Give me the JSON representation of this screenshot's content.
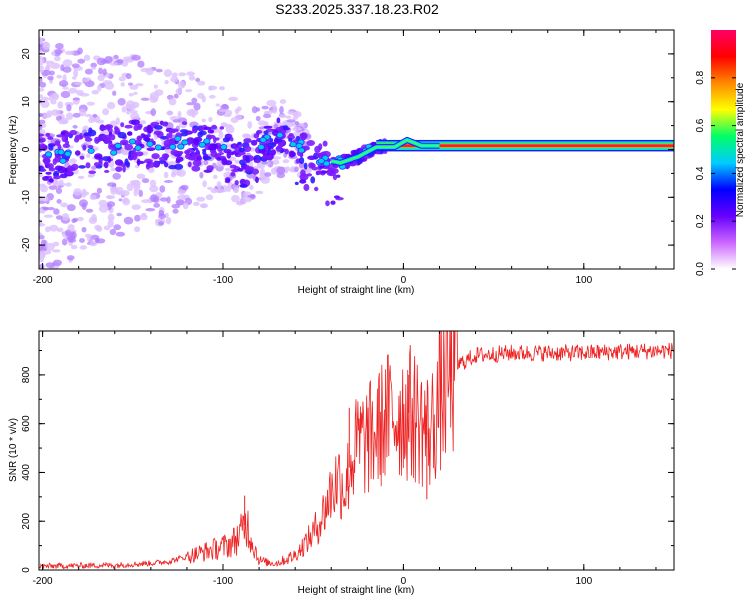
{
  "title": "S233.2025.337.18.23.R02",
  "chart_data": [
    {
      "type": "heatmap",
      "xlabel": "Height of straight line (km)",
      "ylabel": "Frequency (Hz)",
      "xlim": [
        -202,
        150
      ],
      "ylim": [
        -25,
        25
      ],
      "x_ticks": [
        -200,
        -100,
        0,
        100
      ],
      "x_tick_labels": [
        "-200",
        "-100",
        "0",
        "100"
      ],
      "y_ticks": [
        -20,
        -10,
        0,
        10,
        20
      ],
      "y_tick_labels": [
        "-20",
        "-10",
        "0",
        "10",
        "20"
      ],
      "colorbar": {
        "label": "Normalized spectral amplitude",
        "range": [
          0,
          1
        ],
        "ticks": [
          0.0,
          0.2,
          0.4,
          0.6,
          0.8
        ],
        "tick_labels": [
          "0.0",
          "0.2",
          "0.4",
          "0.6",
          "0.8"
        ],
        "colors": [
          "#ffffff",
          "#cc66ff",
          "#6600ff",
          "#0000ff",
          "#00ccff",
          "#00ff66",
          "#ffff00",
          "#ff8800",
          "#ff0000",
          "#ff0066"
        ]
      },
      "ridge": [
        {
          "x": -190,
          "y": -1.5
        },
        {
          "x": -170,
          "y": 0
        },
        {
          "x": -150,
          "y": 1
        },
        {
          "x": -130,
          "y": 1
        },
        {
          "x": -115,
          "y": 2
        },
        {
          "x": -100,
          "y": 1
        },
        {
          "x": -90,
          "y": -2
        },
        {
          "x": -70,
          "y": 3
        },
        {
          "x": -55,
          "y": 0
        },
        {
          "x": -45,
          "y": -2
        },
        {
          "x": -35,
          "y": -2.8
        },
        {
          "x": -25,
          "y": -1.5
        },
        {
          "x": -15,
          "y": 0.5
        },
        {
          "x": -5,
          "y": 0.5
        },
        {
          "x": 2,
          "y": 2
        },
        {
          "x": 10,
          "y": 0.8
        },
        {
          "x": 20,
          "y": 0.8
        },
        {
          "x": 150,
          "y": 0.8
        }
      ]
    },
    {
      "type": "line",
      "xlabel": "Height of straight line (km)",
      "ylabel": "SNR (10 * v/v)",
      "xlim": [
        -202,
        150
      ],
      "ylim": [
        0,
        980
      ],
      "x_ticks": [
        -200,
        -100,
        0,
        100
      ],
      "x_tick_labels": [
        "-200",
        "-100",
        "0",
        "100"
      ],
      "y_ticks": [
        0,
        200,
        400,
        600,
        800
      ],
      "y_tick_labels": [
        "0",
        "200",
        "400",
        "600",
        "800"
      ],
      "color": "#ee2222",
      "series": [
        {
          "name": "SNR",
          "x": [
            -202,
            -180,
            -160,
            -140,
            -130,
            -120,
            -110,
            -100,
            -95,
            -90,
            -87,
            -84,
            -80,
            -75,
            -70,
            -60,
            -50,
            -45,
            -40,
            -36,
            -32,
            -30,
            -25,
            -20,
            -15,
            -10,
            -5,
            0,
            5,
            10,
            15,
            20,
            25,
            30,
            40,
            60,
            80,
            100,
            120,
            150
          ],
          "y": [
            15,
            18,
            20,
            28,
            35,
            55,
            75,
            95,
            110,
            150,
            200,
            120,
            40,
            30,
            28,
            60,
            150,
            220,
            320,
            380,
            330,
            420,
            520,
            530,
            560,
            620,
            640,
            650,
            640,
            600,
            560,
            700,
            780,
            840,
            880,
            890,
            890,
            890,
            895,
            900
          ]
        }
      ],
      "spikes": [
        {
          "x": -88,
          "y": 305
        },
        {
          "x": -30,
          "y": 665
        },
        {
          "x": 3,
          "y": 800
        },
        {
          "x": 13,
          "y": 290
        }
      ]
    }
  ]
}
